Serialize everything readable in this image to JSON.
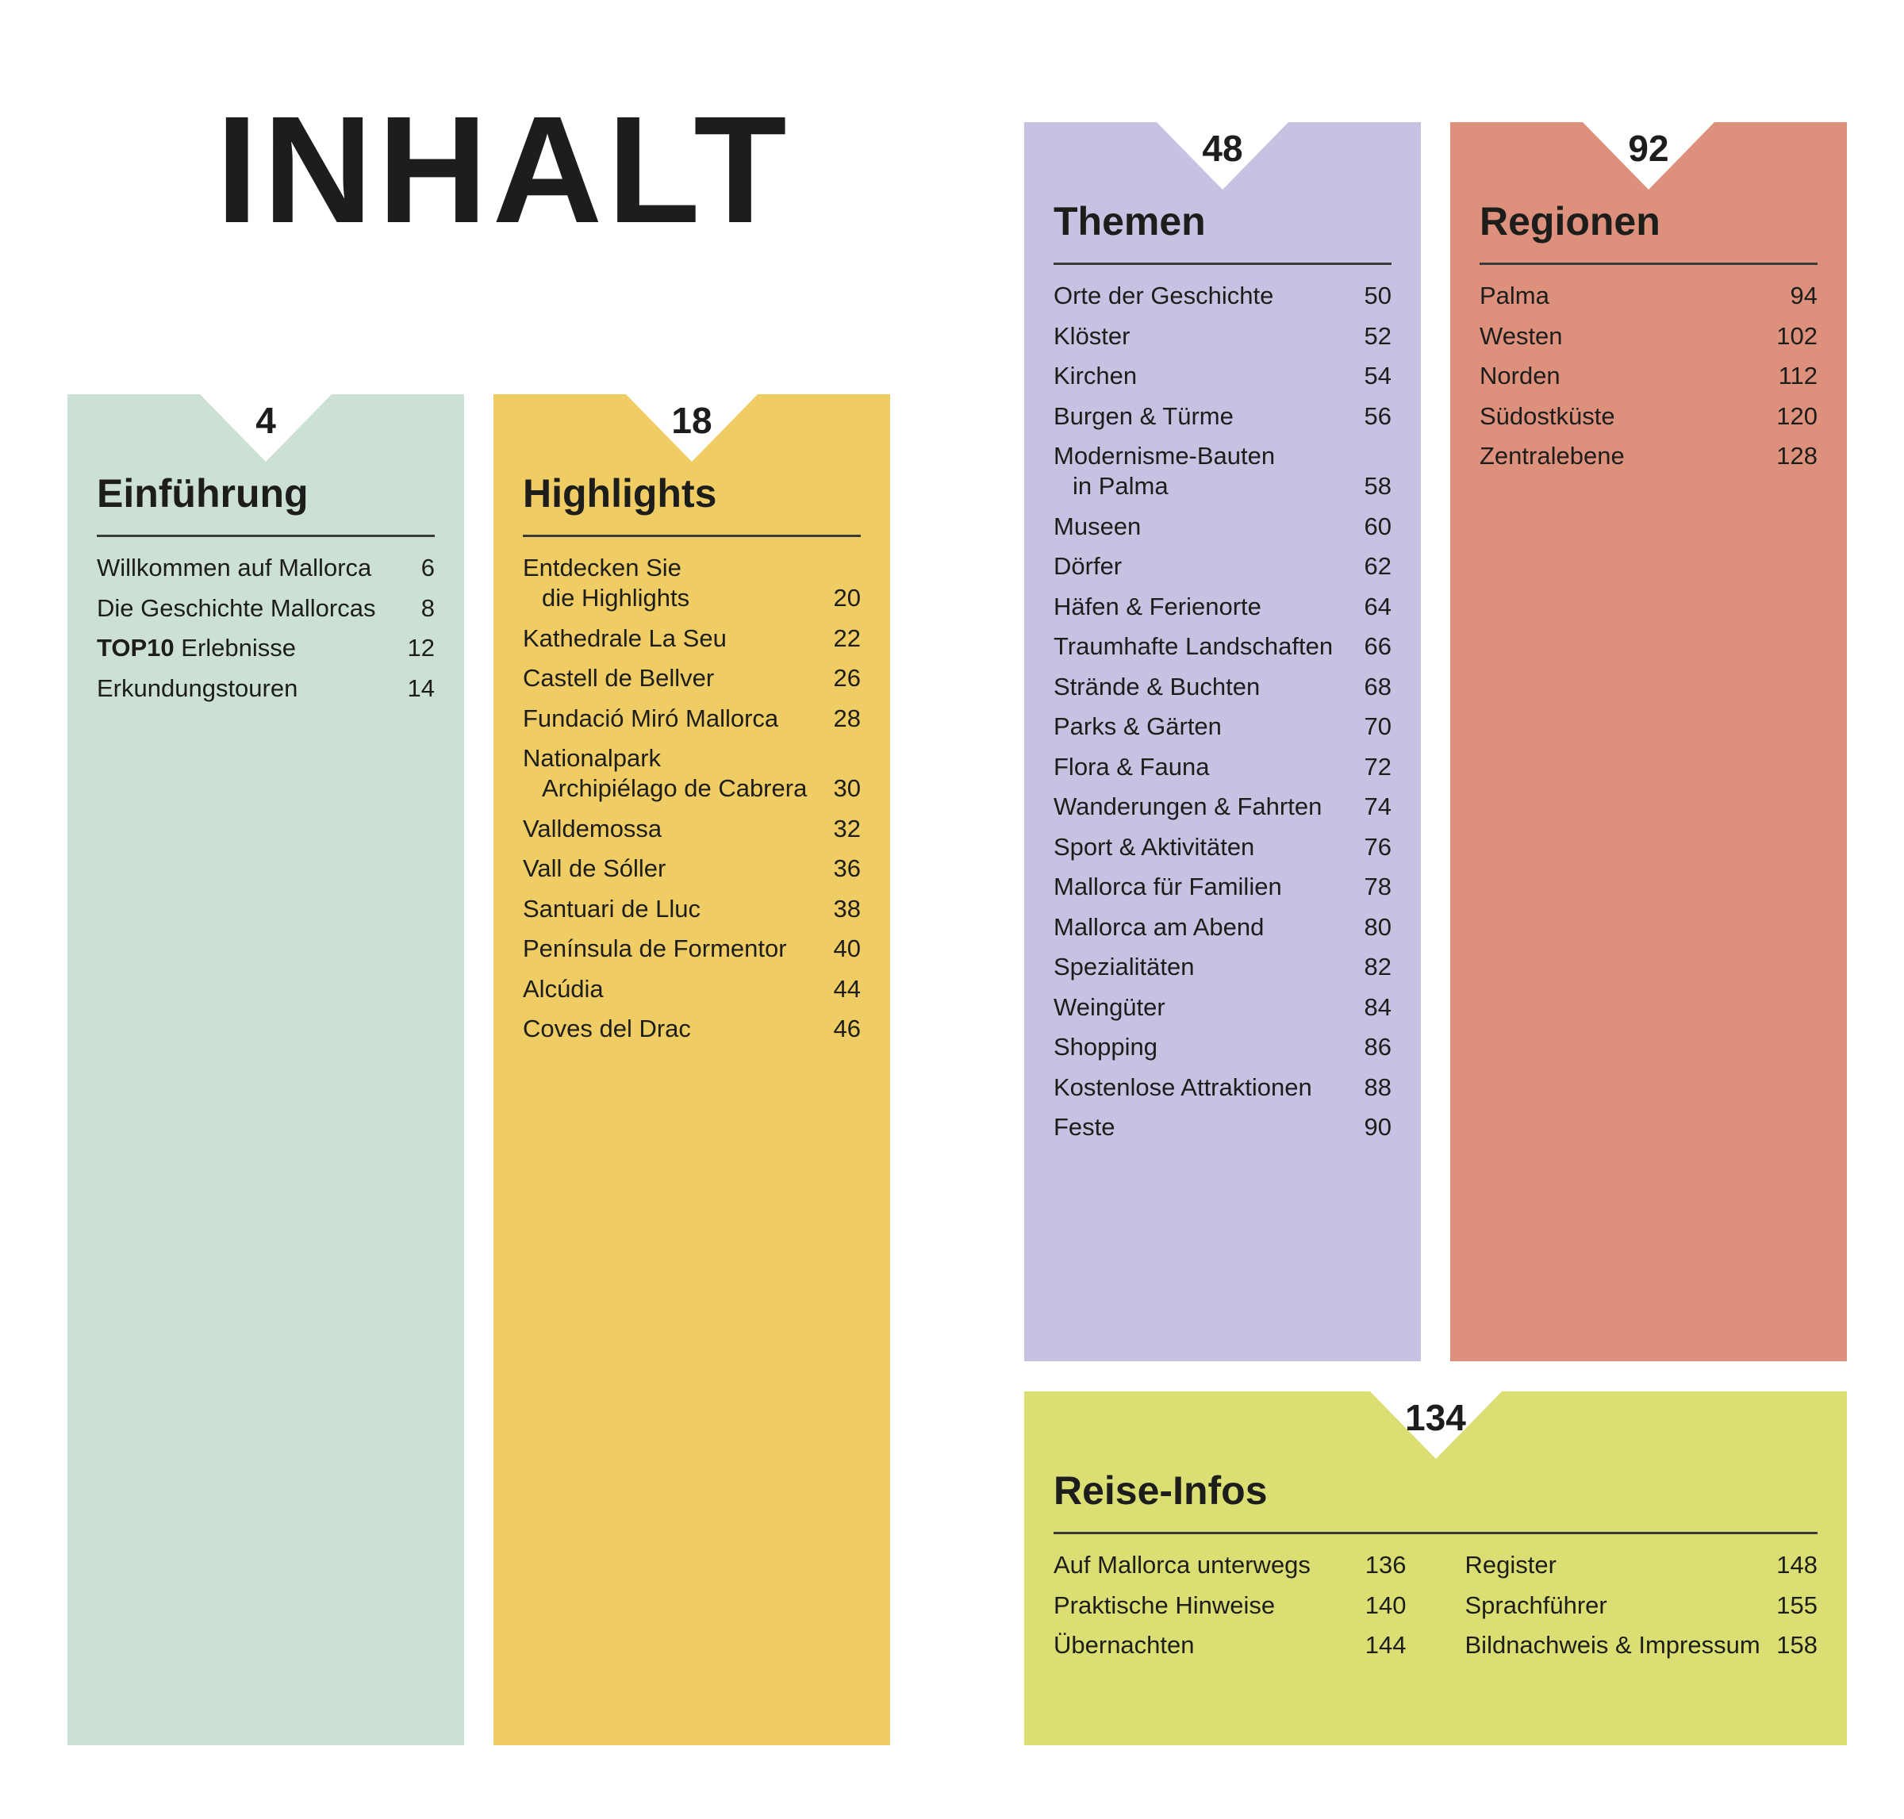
{
  "title": "INHALT",
  "colors": {
    "einfuehrung": "#cce0d6",
    "highlights": "#efcd64",
    "themen": "#c6c2e2",
    "regionen": "#dd917d",
    "reise": "#dbdf73",
    "text": "#1d1d1b"
  },
  "sections": {
    "einfuehrung": {
      "page": "4",
      "heading": "Einführung",
      "items": [
        {
          "label": "Willkommen auf Mallorca",
          "page": "6"
        },
        {
          "label": "Die Geschichte Mallorcas",
          "page": "8"
        },
        {
          "label_bold": "TOP10",
          "label": " Erlebnisse",
          "page": "12"
        },
        {
          "label": "Erkundungstouren",
          "page": "14"
        }
      ]
    },
    "highlights": {
      "page": "18",
      "heading": "Highlights",
      "items": [
        {
          "label": "Entdecken Sie",
          "cont": "die Highlights",
          "page": "20"
        },
        {
          "label": "Kathedrale La Seu",
          "page": "22"
        },
        {
          "label": "Castell de Bellver",
          "page": "26"
        },
        {
          "label": "Fundació Miró Mallorca",
          "page": "28"
        },
        {
          "label": "Nationalpark",
          "cont": "Archipiélago de Cabrera",
          "page": "30"
        },
        {
          "label": "Valldemossa",
          "page": "32"
        },
        {
          "label": "Vall de Sóller",
          "page": "36"
        },
        {
          "label": "Santuari de Lluc",
          "page": "38"
        },
        {
          "label": "Península de Formentor",
          "page": "40"
        },
        {
          "label": "Alcúdia",
          "page": "44"
        },
        {
          "label": "Coves del Drac",
          "page": "46"
        }
      ]
    },
    "themen": {
      "page": "48",
      "heading": "Themen",
      "items": [
        {
          "label": "Orte der Geschichte",
          "page": "50"
        },
        {
          "label": "Klöster",
          "page": "52"
        },
        {
          "label": "Kirchen",
          "page": "54"
        },
        {
          "label": "Burgen & Türme",
          "page": "56"
        },
        {
          "label": "Modernisme-Bauten",
          "cont": "in Palma",
          "page": "58"
        },
        {
          "label": "Museen",
          "page": "60"
        },
        {
          "label": "Dörfer",
          "page": "62"
        },
        {
          "label": "Häfen & Ferienorte",
          "page": "64"
        },
        {
          "label": "Traumhafte Landschaften",
          "page": "66"
        },
        {
          "label": "Strände & Buchten",
          "page": "68"
        },
        {
          "label": "Parks & Gärten",
          "page": "70"
        },
        {
          "label": "Flora & Fauna",
          "page": "72"
        },
        {
          "label": "Wanderungen & Fahrten",
          "page": "74"
        },
        {
          "label": "Sport & Aktivitäten",
          "page": "76"
        },
        {
          "label": "Mallorca für Familien",
          "page": "78"
        },
        {
          "label": "Mallorca am Abend",
          "page": "80"
        },
        {
          "label": "Spezialitäten",
          "page": "82"
        },
        {
          "label": "Weingüter",
          "page": "84"
        },
        {
          "label": "Shopping",
          "page": "86"
        },
        {
          "label": "Kostenlose Attraktionen",
          "page": "88"
        },
        {
          "label": "Feste",
          "page": "90"
        }
      ]
    },
    "regionen": {
      "page": "92",
      "heading": "Regionen",
      "items": [
        {
          "label": "Palma",
          "page": "94"
        },
        {
          "label": "Westen",
          "page": "102"
        },
        {
          "label": "Norden",
          "page": "112"
        },
        {
          "label": "Südostküste",
          "page": "120"
        },
        {
          "label": "Zentralebene",
          "page": "128"
        }
      ]
    },
    "reise": {
      "page": "134",
      "heading": "Reise-Infos",
      "columns": [
        [
          {
            "label": "Auf Mallorca unterwegs",
            "page": "136"
          },
          {
            "label": "Praktische Hinweise",
            "page": "140"
          },
          {
            "label": "Übernachten",
            "page": "144"
          }
        ],
        [
          {
            "label": "Register",
            "page": "148"
          },
          {
            "label": "Sprachführer",
            "page": "155"
          },
          {
            "label": "Bildnachweis & Impressum",
            "page": "158"
          }
        ]
      ]
    }
  }
}
